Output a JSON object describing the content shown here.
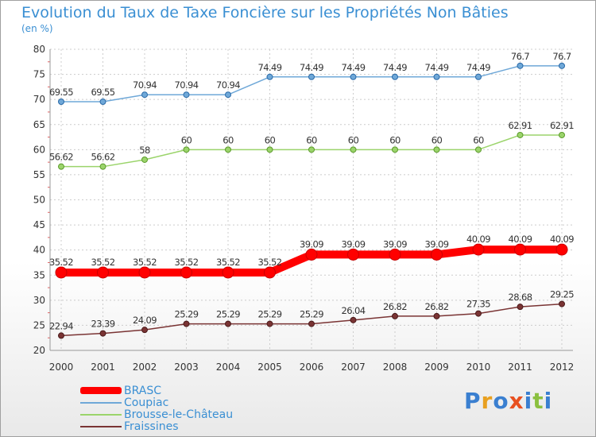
{
  "title": "Evolution du Taux de Taxe Foncière sur les Propriétés Non Bâties",
  "unit": "(en %)",
  "logo": "Proxiti",
  "chart_data": {
    "type": "line",
    "x": [
      "2000",
      "2001",
      "2002",
      "2003",
      "2004",
      "2005",
      "2006",
      "2007",
      "2008",
      "2009",
      "2010",
      "2011",
      "2012"
    ],
    "ylim": [
      20,
      80
    ],
    "yticks": [
      20,
      25,
      30,
      35,
      40,
      45,
      50,
      55,
      60,
      65,
      70,
      75,
      80
    ],
    "grid": true,
    "legend": "bottom-left",
    "series": [
      {
        "name": "BRASC",
        "color": "#ff0000",
        "values": [
          35.52,
          35.52,
          35.52,
          35.52,
          35.52,
          35.52,
          39.09,
          39.09,
          39.09,
          39.09,
          40.09,
          40.09,
          40.09
        ],
        "labels": [
          "35.52",
          "35.52",
          "35.52",
          "35.52",
          "35.52",
          "35.52",
          "39.09",
          "39.09",
          "39.09",
          "39.09",
          "40.09",
          "40.09",
          "40.09"
        ]
      },
      {
        "name": "Coupiac",
        "color": "#6fa8d8",
        "values": [
          69.55,
          69.55,
          70.94,
          70.94,
          70.94,
          74.49,
          74.49,
          74.49,
          74.49,
          74.49,
          74.49,
          76.7,
          76.7
        ],
        "labels": [
          "69.55",
          "69.55",
          "70.94",
          "70.94",
          "70.94",
          "74.49",
          "74.49",
          "74.49",
          "74.49",
          "74.49",
          "74.49",
          "76.7",
          "76.7"
        ]
      },
      {
        "name": "Brousse-le-Château",
        "color": "#9bd46b",
        "values": [
          56.62,
          56.62,
          58,
          60,
          60,
          60,
          60,
          60,
          60,
          60,
          60,
          62.91,
          62.91
        ],
        "labels": [
          "56.62",
          "56.62",
          "58",
          "60",
          "60",
          "60",
          "60",
          "60",
          "60",
          "60",
          "60",
          "62.91",
          "62.91"
        ]
      },
      {
        "name": "Fraissines",
        "color": "#7a3434",
        "values": [
          22.94,
          23.39,
          24.09,
          25.29,
          25.29,
          25.29,
          25.29,
          26.04,
          26.82,
          26.82,
          27.35,
          28.68,
          29.25
        ],
        "labels": [
          "22.94",
          "23.39",
          "24.09",
          "25.29",
          "25.29",
          "25.29",
          "25.29",
          "26.04",
          "26.82",
          "26.82",
          "27.35",
          "28.68",
          "29.25"
        ]
      }
    ]
  }
}
